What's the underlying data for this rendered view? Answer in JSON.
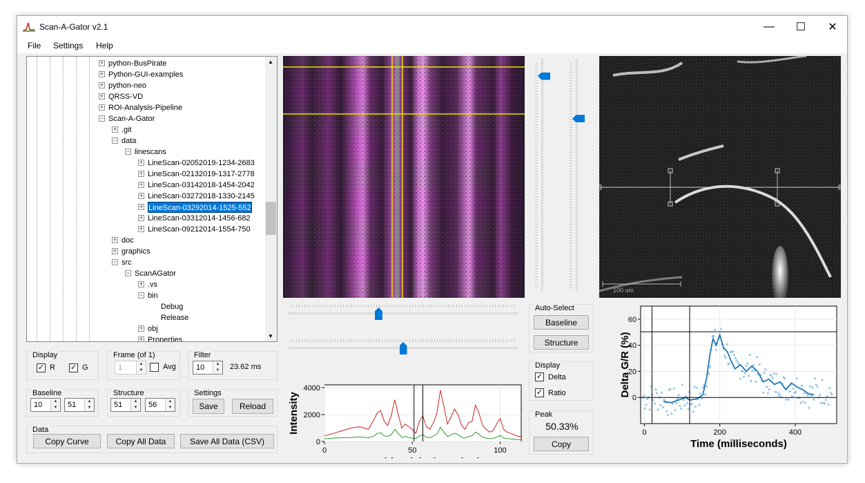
{
  "window": {
    "title": "Scan-A-Gator v2.1",
    "minimize": "—",
    "maximize": "☐",
    "close": "✕"
  },
  "menu": [
    "File",
    "Settings",
    "Help"
  ],
  "tree": {
    "items": [
      {
        "label": "python-BusPirate",
        "level": 0,
        "exp": "+"
      },
      {
        "label": "Python-GUI-examples",
        "level": 0,
        "exp": "+"
      },
      {
        "label": "python-neo",
        "level": 0,
        "exp": "+"
      },
      {
        "label": "QRSS-VD",
        "level": 0,
        "exp": "+"
      },
      {
        "label": "ROI-Analysis-Pipeline",
        "level": 0,
        "exp": "+"
      },
      {
        "label": "Scan-A-Gator",
        "level": 0,
        "exp": "-"
      },
      {
        "label": ".git",
        "level": 1,
        "exp": "+"
      },
      {
        "label": "data",
        "level": 1,
        "exp": "-"
      },
      {
        "label": "linescans",
        "level": 2,
        "exp": "-"
      },
      {
        "label": "LineScan-02052019-1234-2683",
        "level": 3,
        "exp": "+"
      },
      {
        "label": "LineScan-02132019-1317-2778",
        "level": 3,
        "exp": "+"
      },
      {
        "label": "LineScan-03142018-1454-2042",
        "level": 3,
        "exp": "+"
      },
      {
        "label": "LineScan-03272018-1330-2145",
        "level": 3,
        "exp": "+"
      },
      {
        "label": "LineScan-03292014-1525-552",
        "level": 3,
        "exp": "+",
        "selected": true
      },
      {
        "label": "LineScan-03312014-1456-682",
        "level": 3,
        "exp": "+"
      },
      {
        "label": "LineScan-09212014-1554-750",
        "level": 3,
        "exp": "+"
      },
      {
        "label": "doc",
        "level": 1,
        "exp": "+"
      },
      {
        "label": "graphics",
        "level": 1,
        "exp": "+"
      },
      {
        "label": "src",
        "level": 1,
        "exp": "-"
      },
      {
        "label": "ScanAGator",
        "level": 2,
        "exp": "-"
      },
      {
        "label": ".vs",
        "level": 3,
        "exp": "+"
      },
      {
        "label": "bin",
        "level": 3,
        "exp": "-"
      },
      {
        "label": "Debug",
        "level": 4,
        "exp": ""
      },
      {
        "label": "Release",
        "level": 4,
        "exp": ""
      },
      {
        "label": "obj",
        "level": 3,
        "exp": "+"
      },
      {
        "label": "Properties",
        "level": 3,
        "exp": "+"
      }
    ]
  },
  "display": {
    "label": "Display",
    "r": "R",
    "g": "G"
  },
  "frame": {
    "label": "Frame (of 1)",
    "value": "1",
    "avg": "Avg"
  },
  "filter": {
    "label": "Filter",
    "value": "10",
    "ms": "23.62 ms"
  },
  "baseline": {
    "label": "Baseline",
    "v1": "10",
    "v2": "51"
  },
  "structure": {
    "label": "Structure",
    "v1": "51",
    "v2": "56"
  },
  "settings": {
    "label": "Settings",
    "save": "Save",
    "reload": "Reload"
  },
  "data_group": {
    "label": "Data",
    "copy_curve": "Copy Curve",
    "copy_all": "Copy All Data",
    "save_all": "Save All Data (CSV)"
  },
  "auto_select": {
    "label": "Auto-Select",
    "baseline": "Baseline",
    "structure": "Structure"
  },
  "display2": {
    "label": "Display",
    "delta": "Delta",
    "ratio": "Ratio"
  },
  "peak": {
    "label": "Peak",
    "value": "50.33%",
    "copy": "Copy"
  },
  "scale_label": "100 um",
  "sliders": {
    "horizontal_1": 0.39,
    "horizontal_2": 0.5,
    "vertical_1": 0.06,
    "vertical_2": 0.25
  },
  "chart_data": [
    {
      "type": "line",
      "xlabel": "Position (pixel number)",
      "ylabel": "Intensity",
      "xlim": [
        0,
        112
      ],
      "ylim": [
        0,
        4200
      ],
      "xticks": [
        0,
        50,
        100
      ],
      "yticks": [
        0,
        2000,
        4000
      ],
      "vlines": [
        51,
        56
      ],
      "colors": {
        "red": "#cc2222",
        "green": "#2a9a2a"
      },
      "series": [
        {
          "color": "red",
          "values": [
            [
              0,
              420
            ],
            [
              5,
              600
            ],
            [
              10,
              800
            ],
            [
              15,
              1000
            ],
            [
              20,
              1100
            ],
            [
              25,
              900
            ],
            [
              28,
              1600
            ],
            [
              30,
              2100
            ],
            [
              32,
              2300
            ],
            [
              34,
              1500
            ],
            [
              36,
              1200
            ],
            [
              38,
              1900
            ],
            [
              40,
              3100
            ],
            [
              42,
              2000
            ],
            [
              44,
              1000
            ],
            [
              46,
              1300
            ],
            [
              48,
              1100
            ],
            [
              50,
              900
            ],
            [
              52,
              600
            ],
            [
              54,
              1500
            ],
            [
              56,
              1900
            ],
            [
              58,
              1100
            ],
            [
              60,
              900
            ],
            [
              62,
              1400
            ],
            [
              64,
              2100
            ],
            [
              66,
              3800
            ],
            [
              68,
              2600
            ],
            [
              70,
              1300
            ],
            [
              72,
              1800
            ],
            [
              74,
              2400
            ],
            [
              76,
              2000
            ],
            [
              78,
              1200
            ],
            [
              80,
              900
            ],
            [
              82,
              1400
            ],
            [
              84,
              1500
            ],
            [
              86,
              2700
            ],
            [
              88,
              2100
            ],
            [
              90,
              1200
            ],
            [
              92,
              900
            ],
            [
              94,
              700
            ],
            [
              96,
              800
            ],
            [
              98,
              1300
            ],
            [
              100,
              1700
            ],
            [
              102,
              900
            ],
            [
              104,
              700
            ],
            [
              106,
              600
            ],
            [
              108,
              500
            ],
            [
              110,
              400
            ],
            [
              112,
              380
            ]
          ]
        },
        {
          "color": "green",
          "values": [
            [
              0,
              200
            ],
            [
              5,
              250
            ],
            [
              10,
              280
            ],
            [
              15,
              300
            ],
            [
              20,
              350
            ],
            [
              25,
              280
            ],
            [
              28,
              400
            ],
            [
              30,
              600
            ],
            [
              32,
              650
            ],
            [
              34,
              420
            ],
            [
              36,
              380
            ],
            [
              38,
              500
            ],
            [
              40,
              900
            ],
            [
              42,
              600
            ],
            [
              44,
              320
            ],
            [
              46,
              380
            ],
            [
              48,
              300
            ],
            [
              50,
              250
            ],
            [
              52,
              220
            ],
            [
              54,
              420
            ],
            [
              56,
              500
            ],
            [
              58,
              320
            ],
            [
              60,
              280
            ],
            [
              62,
              400
            ],
            [
              64,
              550
            ],
            [
              66,
              1050
            ],
            [
              68,
              700
            ],
            [
              70,
              380
            ],
            [
              72,
              480
            ],
            [
              74,
              620
            ],
            [
              76,
              520
            ],
            [
              78,
              320
            ],
            [
              80,
              260
            ],
            [
              82,
              380
            ],
            [
              84,
              420
            ],
            [
              86,
              700
            ],
            [
              88,
              550
            ],
            [
              90,
              320
            ],
            [
              92,
              260
            ],
            [
              94,
              220
            ],
            [
              96,
              230
            ],
            [
              98,
              340
            ],
            [
              100,
              450
            ],
            [
              102,
              260
            ],
            [
              104,
              220
            ],
            [
              106,
              200
            ],
            [
              108,
              180
            ],
            [
              110,
              150
            ],
            [
              112,
              150
            ]
          ]
        }
      ]
    },
    {
      "type": "scatter",
      "xlabel": "Time (milliseconds)",
      "ylabel": "Delta G/R (%)",
      "xlim": [
        -10,
        510
      ],
      "ylim": [
        -20,
        70
      ],
      "xticks": [
        0,
        200,
        400
      ],
      "yticks": [
        0,
        20,
        40,
        60
      ],
      "vlines": [
        20,
        120
      ],
      "hlines": [
        0,
        50.33
      ],
      "colors": {
        "line": "#1f77b4",
        "points": "#7fb6e0"
      },
      "series": [
        {
          "name": "smoothed",
          "values": [
            [
              50,
              -3
            ],
            [
              70,
              -4
            ],
            [
              90,
              -2
            ],
            [
              110,
              0
            ],
            [
              120,
              -2
            ],
            [
              140,
              -1
            ],
            [
              155,
              2
            ],
            [
              165,
              15
            ],
            [
              175,
              35
            ],
            [
              182,
              45
            ],
            [
              190,
              40
            ],
            [
              200,
              48
            ],
            [
              210,
              38
            ],
            [
              220,
              35
            ],
            [
              230,
              28
            ],
            [
              240,
              22
            ],
            [
              255,
              25
            ],
            [
              270,
              20
            ],
            [
              285,
              24
            ],
            [
              300,
              20
            ],
            [
              315,
              12
            ],
            [
              330,
              14
            ],
            [
              345,
              10
            ],
            [
              360,
              12
            ],
            [
              375,
              6
            ],
            [
              390,
              11
            ],
            [
              405,
              8
            ],
            [
              420,
              6
            ],
            [
              435,
              3
            ],
            [
              450,
              2
            ]
          ]
        }
      ]
    }
  ]
}
